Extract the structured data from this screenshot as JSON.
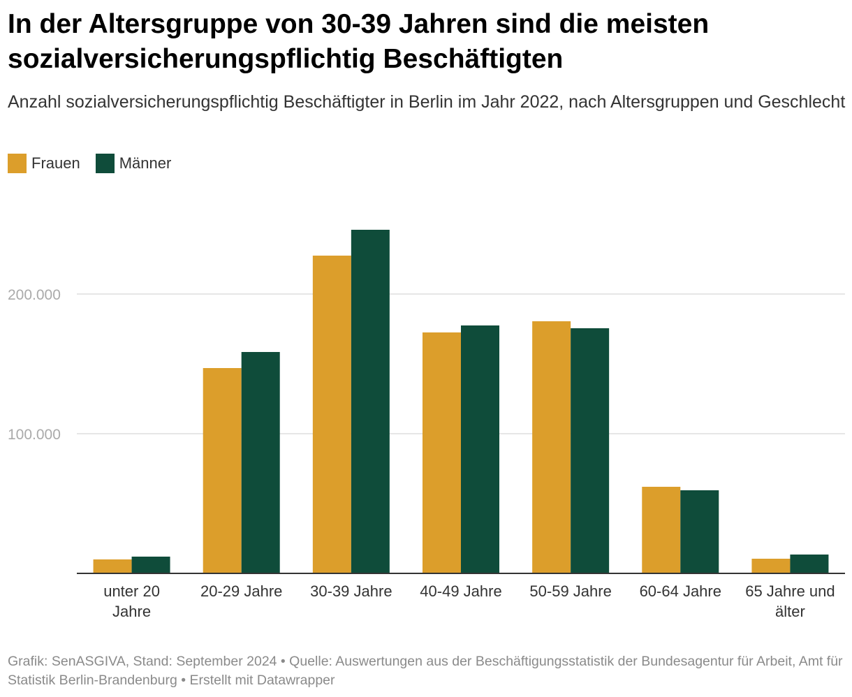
{
  "title": "In der Altersgruppe von 30-39 Jahren sind die meisten sozialversicherungspflichtig Beschäftigten",
  "subtitle": "Anzahl sozialversicherungspflichtig Beschäftigter in Berlin im Jahr 2022, nach Altersgruppen und Geschlecht",
  "footer": "Grafik: SenASGIVA, Stand: September 2024 • Quelle: Auswertungen aus der Beschäftigungsstatistik der Bundesagentur für Arbeit, Amt für Statistik Berlin-Brandenburg • Erstellt mit Datawrapper",
  "colors": {
    "frauen": "#dc9e2b",
    "maenner": "#0f4c3a",
    "grid": "#dddddd",
    "axis": "#333333",
    "tick": "#aaaaaa"
  },
  "chart_data": {
    "type": "bar",
    "title": "In der Altersgruppe von 30-39 Jahren sind die meisten sozialversicherungspflichtig Beschäftigten",
    "categories": [
      [
        "unter 20",
        "Jahre"
      ],
      [
        "20-29 Jahre"
      ],
      [
        "30-39 Jahre"
      ],
      [
        "40-49 Jahre"
      ],
      [
        "50-59 Jahre"
      ],
      [
        "60-64 Jahre"
      ],
      [
        "65 Jahre und",
        "älter"
      ]
    ],
    "series": [
      {
        "name": "Frauen",
        "values": [
          10000,
          147000,
          227500,
          172500,
          180500,
          62000,
          10500
        ]
      },
      {
        "name": "Männer",
        "values": [
          12000,
          158500,
          246000,
          177500,
          175500,
          59500,
          13500
        ]
      }
    ],
    "yticks": [
      {
        "value": 100000,
        "label": "100.000"
      },
      {
        "value": 200000,
        "label": "200.000"
      }
    ],
    "ylim": [
      0,
      250000
    ],
    "xlabel": "",
    "ylabel": "",
    "legend": "top-left",
    "grid": true
  }
}
